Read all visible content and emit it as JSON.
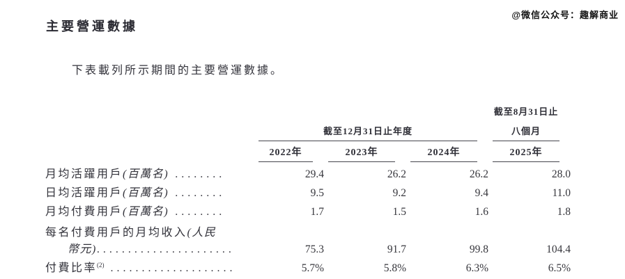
{
  "page": {
    "title": "主要營運數據",
    "watermark": "@微信公众号：趣解商业",
    "intro": "下表載列所示期間的主要營運數據。"
  },
  "table": {
    "span_header_years": "截至12月31日止年度",
    "span_header_period_line1": "截至8月31日止",
    "span_header_period_line2": "八個月",
    "year_headers": [
      "2022年",
      "2023年",
      "2024年",
      "2025年"
    ],
    "rows": [
      {
        "label": "月均活躍用戶",
        "note": "(百萬名)",
        "leader": " ........",
        "values": [
          "29.4",
          "26.2",
          "26.2",
          "28.0"
        ]
      },
      {
        "label": "日均活躍用戶",
        "note": "(百萬名)",
        "leader": " ........",
        "values": [
          "9.5",
          "9.2",
          "9.4",
          "11.0"
        ]
      },
      {
        "label": "月均付費用戶",
        "note": "(百萬名)",
        "leader": " ........",
        "values": [
          "1.7",
          "1.5",
          "1.6",
          "1.8"
        ]
      },
      {
        "label": "每名付費用戶的月均收入",
        "note": "(人民",
        "note_line2": "幣元)",
        "leader": "......................",
        "values": [
          "75.3",
          "91.7",
          "99.8",
          "104.4"
        ]
      },
      {
        "label": "付費比率",
        "sup": "(2)",
        "leader": " ....................",
        "values": [
          "5.7%",
          "5.8%",
          "6.3%",
          "6.5%"
        ]
      }
    ]
  },
  "colors": {
    "text": "#32323a",
    "rule": "#44444c",
    "background": "#ffffff"
  }
}
